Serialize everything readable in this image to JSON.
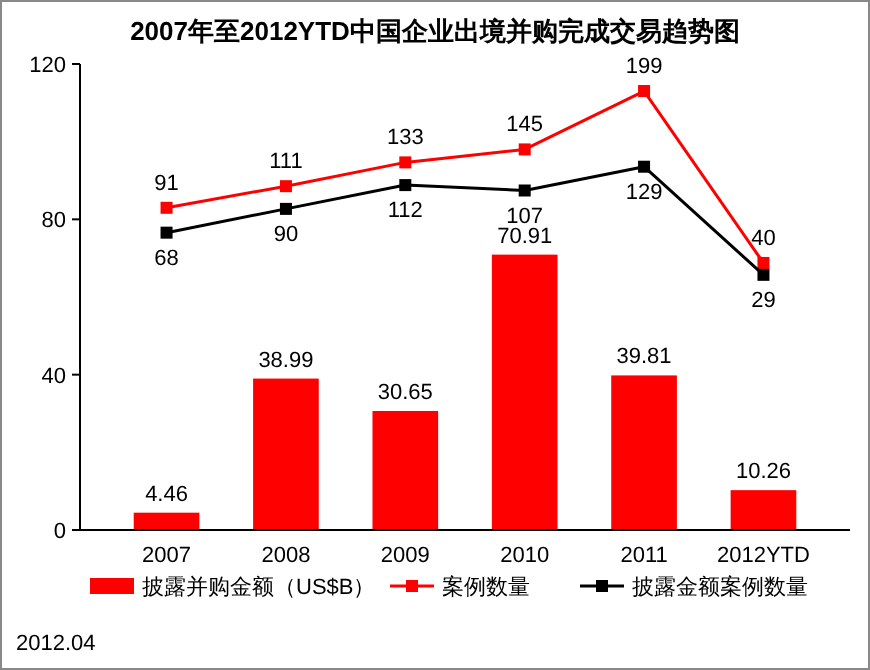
{
  "chart_data": {
    "type": "bar",
    "title": "2007年至2012YTD中国企业出境并购完成交易趋势图",
    "categories": [
      "2007",
      "2008",
      "2009",
      "2010",
      "2011",
      "2012YTD"
    ],
    "series": [
      {
        "name": "披露并购金额（US$B）",
        "color": "#ff0000",
        "values": [
          4.46,
          38.99,
          30.65,
          70.91,
          39.81,
          10.26
        ]
      },
      {
        "name": "案例数量",
        "type": "line",
        "axis": "y2",
        "color": "#ff0000",
        "values": [
          91,
          111,
          133,
          145,
          199,
          40
        ]
      },
      {
        "name": "披露金额案例数量",
        "type": "line",
        "axis": "y2",
        "color": "#000000",
        "values": [
          68,
          90,
          112,
          107,
          129,
          29
        ]
      }
    ],
    "ylim": [
      0,
      120
    ],
    "yticks": [
      0,
      40,
      80,
      120
    ],
    "y2lim": [
      -207,
      224
    ],
    "data_labels": true,
    "marker": "square",
    "legend": "bottom",
    "grid": false,
    "annotations": [
      "2012.04"
    ]
  }
}
